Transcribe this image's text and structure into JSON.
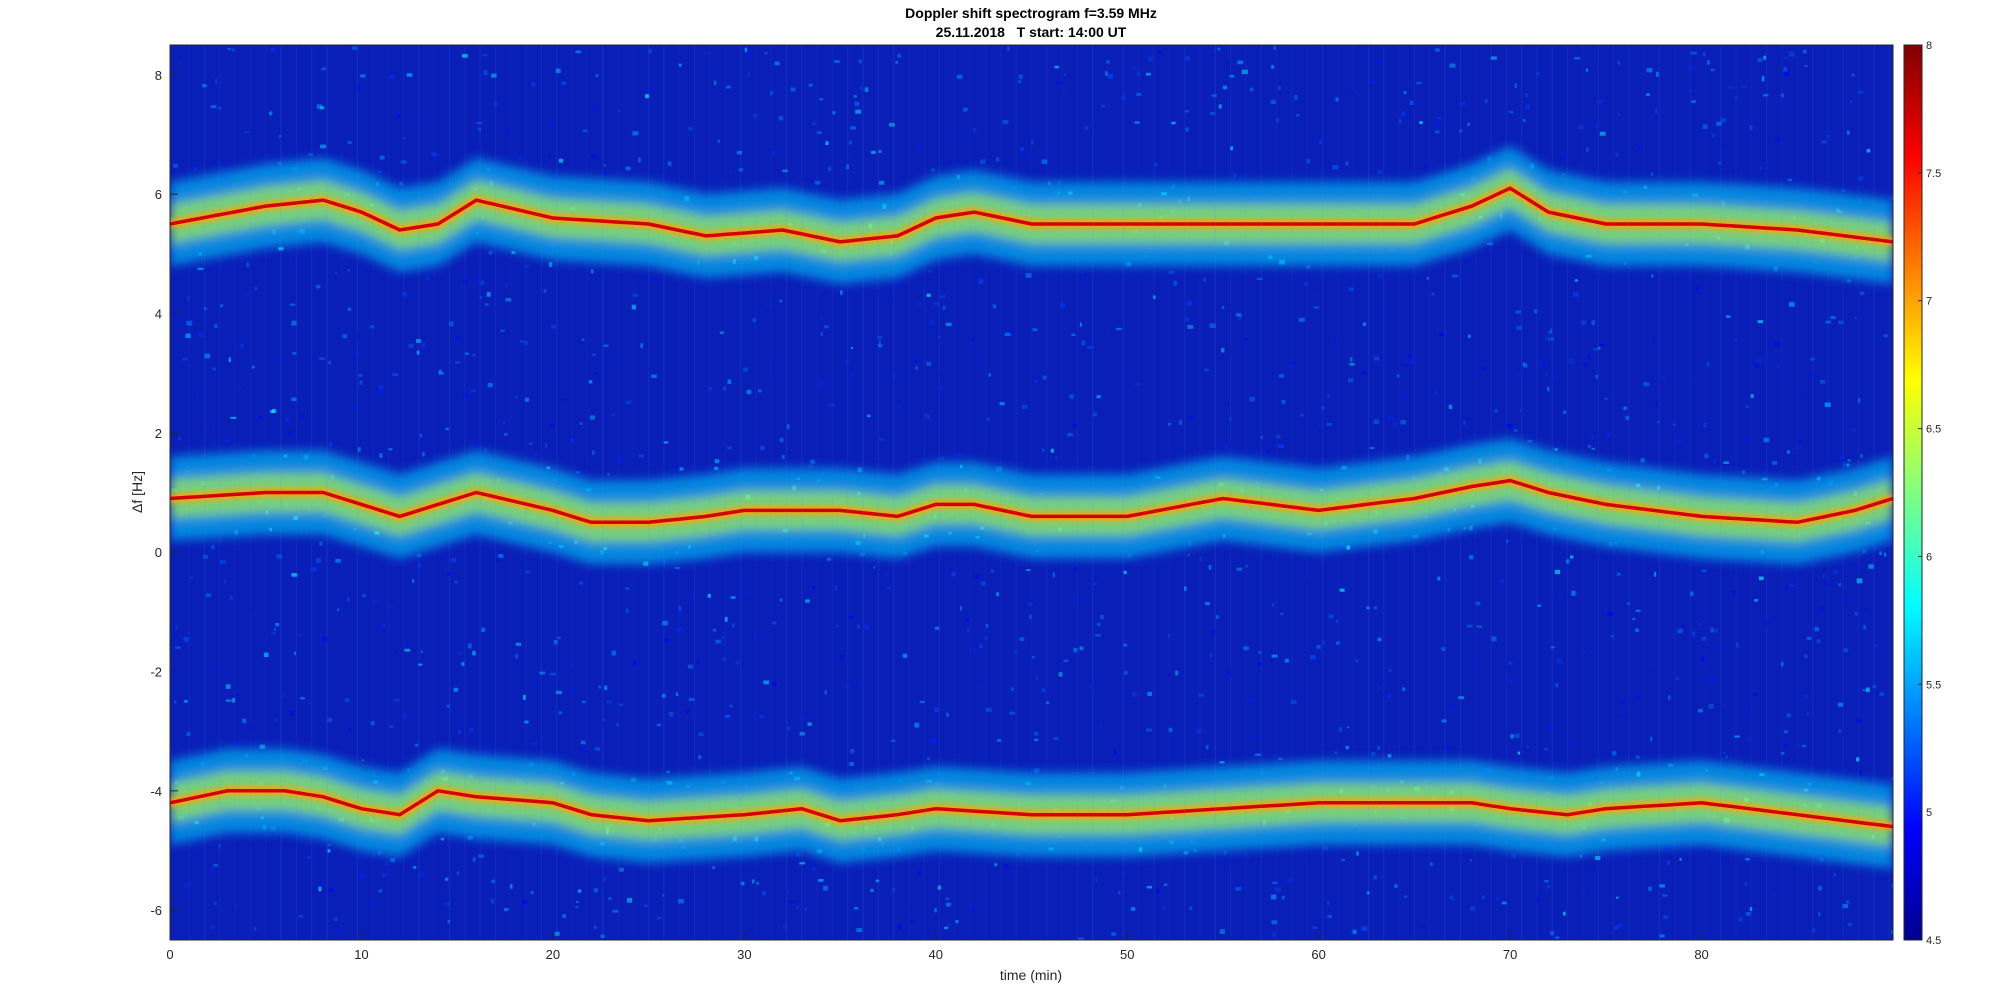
{
  "chart_data": {
    "type": "heatmap",
    "title": "Doppler shift spectrogram f=3.59 MHz",
    "subtitle": "25.11.2018   T start: 14:00 UT",
    "xlabel": "time (min)",
    "ylabel": "Δf [Hz]",
    "xlim": [
      0,
      90
    ],
    "ylim": [
      -6.5,
      8.5
    ],
    "x_ticks": [
      0,
      10,
      20,
      30,
      40,
      50,
      60,
      70,
      80
    ],
    "x_tick_labels": [
      "0",
      "10",
      "20",
      "30",
      "40",
      "50",
      "60",
      "70",
      "80"
    ],
    "y_ticks": [
      8,
      6,
      4,
      2,
      0,
      -2,
      -4,
      -6
    ],
    "y_tick_labels": [
      "8",
      "6",
      "4",
      "2",
      "0",
      "-2",
      "-4",
      "-6"
    ],
    "colorbar": {
      "colormap": "jet",
      "clim": [
        4.5,
        8
      ],
      "ticks": [
        8,
        7.5,
        7,
        6.5,
        6,
        5.5,
        5,
        4.5
      ],
      "tick_labels": [
        "8",
        "7.5",
        "7",
        "6.5",
        "6",
        "5.5",
        "5",
        "4.5"
      ]
    },
    "background_level": 4.7,
    "series": [
      {
        "x": [
          0,
          5,
          8,
          10,
          12,
          14,
          16,
          20,
          25,
          28,
          32,
          35,
          38,
          40,
          42,
          45,
          50,
          55,
          60,
          65,
          68,
          70,
          72,
          75,
          80,
          85,
          90
        ],
        "y": [
          5.5,
          5.8,
          5.9,
          5.7,
          5.4,
          5.5,
          5.9,
          5.6,
          5.5,
          5.3,
          5.4,
          5.2,
          5.3,
          5.6,
          5.7,
          5.5,
          5.5,
          5.5,
          5.5,
          5.5,
          5.8,
          6.1,
          5.7,
          5.5,
          5.5,
          5.4,
          5.2
        ]
      },
      {
        "x": [
          0,
          5,
          8,
          10,
          12,
          14,
          16,
          20,
          22,
          25,
          28,
          30,
          35,
          38,
          40,
          42,
          45,
          50,
          55,
          60,
          65,
          68,
          70,
          72,
          75,
          80,
          85,
          88,
          90
        ],
        "y": [
          0.9,
          1.0,
          1.0,
          0.8,
          0.6,
          0.8,
          1.0,
          0.7,
          0.5,
          0.5,
          0.6,
          0.7,
          0.7,
          0.6,
          0.8,
          0.8,
          0.6,
          0.6,
          0.9,
          0.7,
          0.9,
          1.1,
          1.2,
          1.0,
          0.8,
          0.6,
          0.5,
          0.7,
          0.9
        ]
      },
      {
        "x": [
          0,
          3,
          6,
          8,
          10,
          12,
          14,
          16,
          20,
          22,
          25,
          30,
          33,
          35,
          38,
          40,
          45,
          50,
          55,
          60,
          65,
          68,
          70,
          73,
          75,
          80,
          85,
          90
        ],
        "y": [
          -4.2,
          -4.0,
          -4.0,
          -4.1,
          -4.3,
          -4.4,
          -4.0,
          -4.1,
          -4.2,
          -4.4,
          -4.5,
          -4.4,
          -4.3,
          -4.5,
          -4.4,
          -4.3,
          -4.4,
          -4.4,
          -4.3,
          -4.2,
          -4.2,
          -4.2,
          -4.3,
          -4.4,
          -4.3,
          -4.2,
          -4.4,
          -4.6
        ]
      }
    ]
  }
}
